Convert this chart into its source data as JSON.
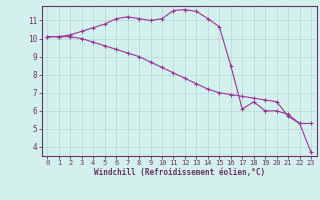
{
  "bg_color": "#d4f0ec",
  "line_color": "#993399",
  "grid_color": "#b8ddd8",
  "axis_color": "#663366",
  "xlabel": "Windchill (Refroidissement éolien,°C)",
  "xlabel_color": "#663366",
  "ylim": [
    3.5,
    11.8
  ],
  "xlim": [
    -0.5,
    23.5
  ],
  "yticks": [
    4,
    5,
    6,
    7,
    8,
    9,
    10,
    11
  ],
  "xticks": [
    0,
    1,
    2,
    3,
    4,
    5,
    6,
    7,
    8,
    9,
    10,
    11,
    12,
    13,
    14,
    15,
    16,
    17,
    18,
    19,
    20,
    21,
    22,
    23
  ],
  "series1_x": [
    0,
    1,
    2,
    3,
    4,
    5,
    6,
    7,
    8,
    9,
    10,
    11,
    12,
    13,
    14,
    15,
    16,
    17,
    18,
    19,
    20,
    21,
    22,
    23
  ],
  "series1_y": [
    10.1,
    10.1,
    10.2,
    10.4,
    10.6,
    10.8,
    11.1,
    11.2,
    11.1,
    11.0,
    11.1,
    11.55,
    11.6,
    11.5,
    11.1,
    10.65,
    8.5,
    6.1,
    6.5,
    6.0,
    6.0,
    5.8,
    5.3,
    3.7
  ],
  "series2_x": [
    0,
    1,
    2,
    3,
    4,
    5,
    6,
    7,
    8,
    9,
    10,
    11,
    12,
    13,
    14,
    15,
    16,
    17,
    18,
    19,
    20,
    21,
    22,
    23
  ],
  "series2_y": [
    10.1,
    10.1,
    10.1,
    10.0,
    9.8,
    9.6,
    9.4,
    9.2,
    9.0,
    8.7,
    8.4,
    8.1,
    7.8,
    7.5,
    7.2,
    7.0,
    6.9,
    6.8,
    6.7,
    6.6,
    6.5,
    5.7,
    5.3,
    5.3
  ],
  "tick_fontsize": 5.0,
  "xlabel_fontsize": 5.5,
  "marker_size": 3.0,
  "linewidth": 0.8
}
